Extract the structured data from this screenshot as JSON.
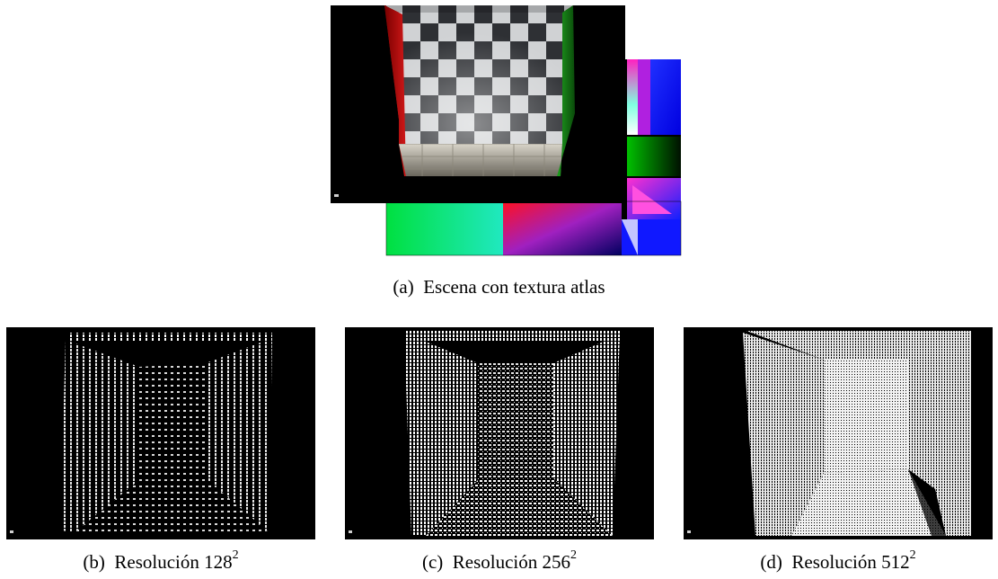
{
  "figure": {
    "panel_a": {
      "label": "(a)",
      "caption": "Escena con textura atlas"
    },
    "panel_b": {
      "label": "(b)",
      "caption": "Resolución 128",
      "exponent": "2"
    },
    "panel_c": {
      "label": "(c)",
      "caption": "Resolución 256",
      "exponent": "2"
    },
    "panel_d": {
      "label": "(d)",
      "caption": "Resolución 512",
      "exponent": "2"
    }
  },
  "colors": {
    "background": "#000000",
    "left_wall": "#c01010",
    "right_wall": "#1a9a1a",
    "point_white": "#ffffff",
    "atlas_green": "#00e040",
    "atlas_blue": "#0010ff",
    "atlas_magenta": "#ff20c0"
  }
}
